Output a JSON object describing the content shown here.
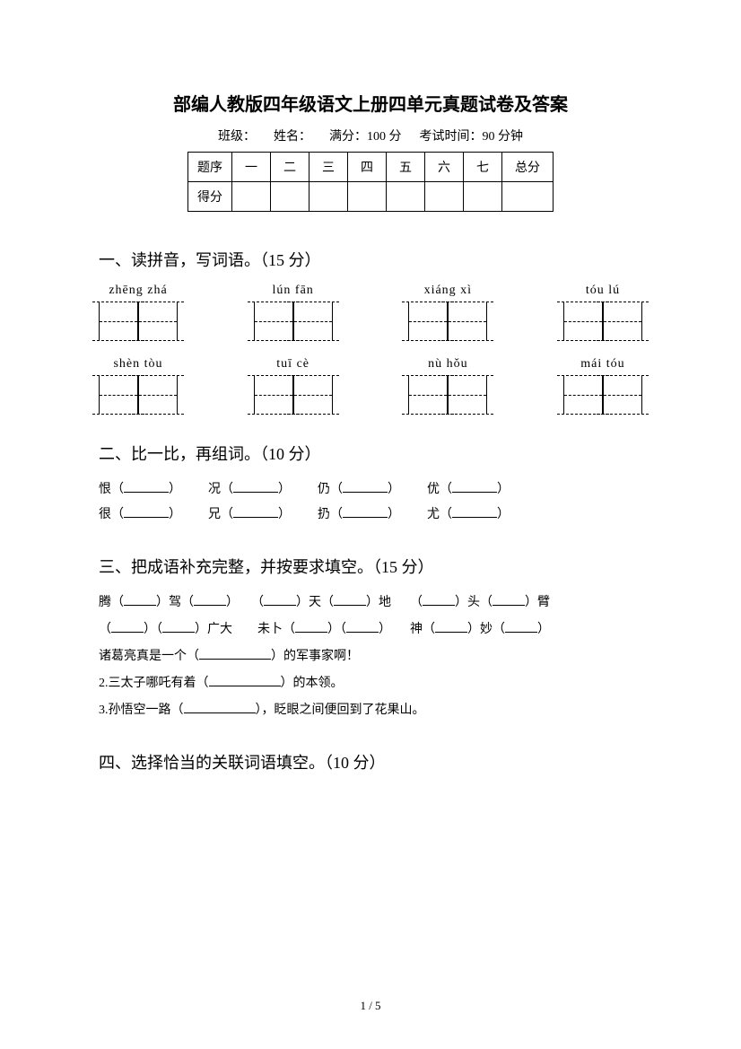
{
  "title": "部编人教版四年级语文上册四单元真题试卷及答案",
  "info": {
    "class": "班级：",
    "name": "姓名：",
    "full_score": "满分：100 分",
    "time": "考试时间：90 分钟"
  },
  "score_table": {
    "row1": [
      "题序",
      "一",
      "二",
      "三",
      "四",
      "五",
      "六",
      "七",
      "总分"
    ],
    "row2_label": "得分"
  },
  "section1": {
    "heading": "一、读拼音，写词语。（15 分）",
    "row1": [
      "zhēng  zhá",
      "lún  fān",
      "xiáng  xì",
      "tóu  lú"
    ],
    "row2": [
      "shèn  tòu",
      "tuī  cè",
      "nù  hǒu",
      "mái  tóu"
    ]
  },
  "section2": {
    "heading": "二、比一比，再组词。（10 分）",
    "pairs_row1": [
      "恨（",
      "况（",
      "仍（",
      "优（"
    ],
    "pairs_row2": [
      "很（",
      "兄（",
      "扔（",
      "尤（"
    ]
  },
  "section3": {
    "heading": "三、把成语补充完整，并按要求填空。（15 分）",
    "line1_parts": [
      "腾（",
      "）驾（",
      "）　　（",
      "）天（",
      "）地　　（",
      "）头（",
      "）臂"
    ],
    "line2_parts": [
      "（",
      "）（",
      "）广大　　未卜（",
      "）（",
      "）　　神（",
      "）妙（",
      "）"
    ],
    "line3a": "诸葛亮真是一个（",
    "line3b": "）的军事家啊！",
    "line4a": "2.三太子哪吒有着（",
    "line4b": "）的本领。",
    "line5a": "3.孙悟空一路（",
    "line5b": "），眨眼之间便回到了花果山。"
  },
  "section4": {
    "heading": "四、选择恰当的关联词语填空。（10 分）"
  },
  "page_num": "1 / 5"
}
